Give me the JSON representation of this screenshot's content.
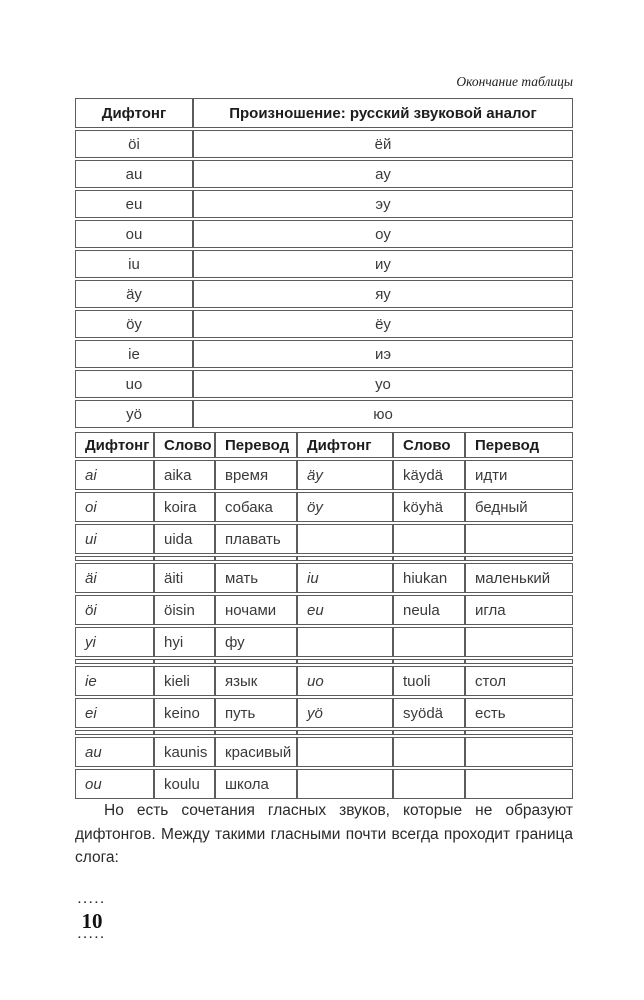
{
  "caption": "Окончание таблицы",
  "paragraph": "Но есть сочетания гласных звуков, которые не образуют дифтонгов. Между такими гласными почти всегда проходит граница слога:",
  "page_number": "10",
  "page_number_dots": "·····",
  "table1": {
    "headers": [
      "Дифтонг",
      "Произношение: русский звуковой аналог"
    ],
    "rows": [
      [
        "öi",
        "ёй"
      ],
      [
        "au",
        "ау"
      ],
      [
        "eu",
        "эу"
      ],
      [
        "ou",
        "оу"
      ],
      [
        "iu",
        "иу"
      ],
      [
        "äy",
        "яу"
      ],
      [
        "öy",
        "ёу"
      ],
      [
        "ie",
        "иэ"
      ],
      [
        "uo",
        "уо"
      ],
      [
        "yö",
        "юо"
      ]
    ]
  },
  "table2": {
    "headers": [
      "Дифтонг",
      "Слово",
      "Перевод",
      "Дифтонг",
      "Слово",
      "Перевод"
    ],
    "groups": [
      [
        [
          "ai",
          "aika",
          "время",
          "äy",
          "käydä",
          "идти"
        ],
        [
          "oi",
          "koira",
          "собака",
          "öy",
          "köyhä",
          "бедный"
        ],
        [
          "ui",
          "uida",
          "плавать",
          "",
          "",
          ""
        ]
      ],
      [
        [
          "äi",
          "äiti",
          "мать",
          "iu",
          "hiukan",
          "маленький"
        ],
        [
          "öi",
          "öisin",
          "ночами",
          "eu",
          "neula",
          "игла"
        ],
        [
          "yi",
          "hyi",
          "фу",
          "",
          "",
          ""
        ]
      ],
      [
        [
          "ie",
          "kieli",
          "язык",
          "uo",
          "tuoli",
          "стол"
        ],
        [
          "ei",
          "keino",
          "путь",
          "yö",
          "syödä",
          "есть"
        ]
      ],
      [
        [
          "au",
          "kaunis",
          "красивый",
          "",
          "",
          ""
        ],
        [
          "ou",
          "koulu",
          "школа",
          "",
          "",
          ""
        ]
      ]
    ]
  }
}
